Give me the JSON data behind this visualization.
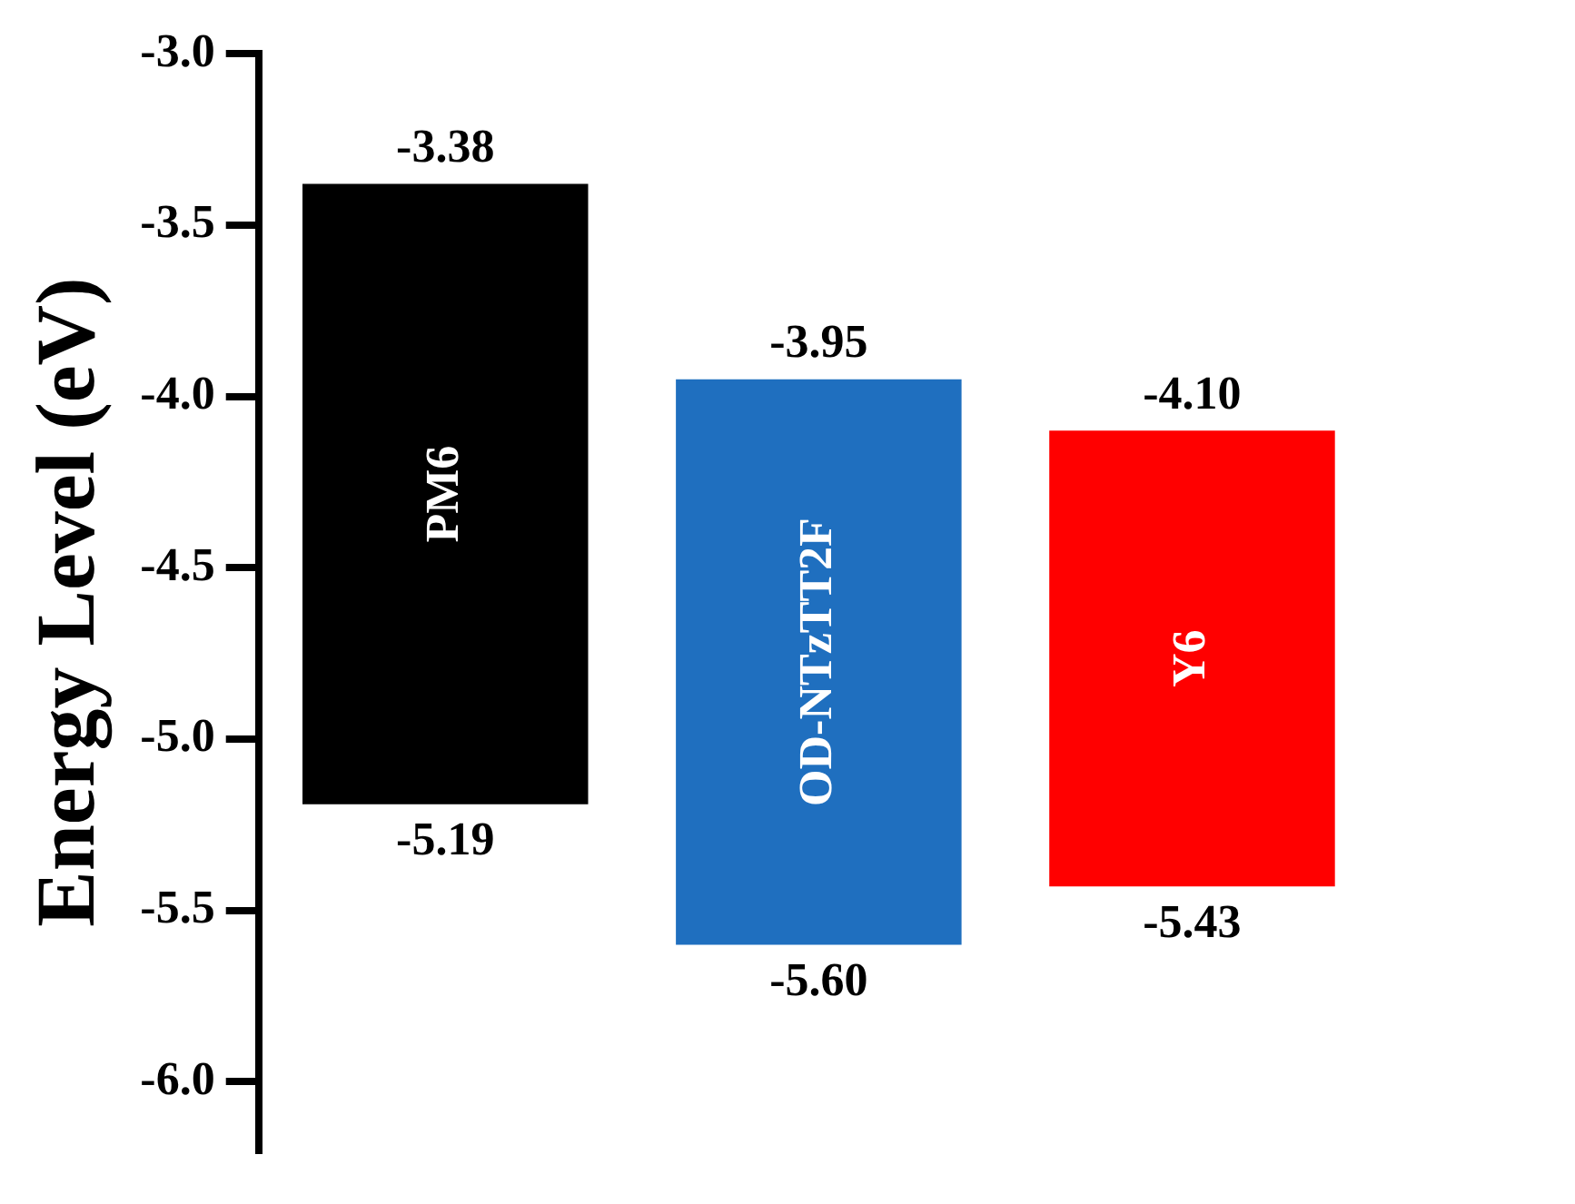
{
  "chart_data": {
    "type": "bar",
    "ylabel": "Energy Level (eV)",
    "categories": [
      "PM6",
      "OD-NTzTT2F",
      "Y6"
    ],
    "base": [
      -5.19,
      -5.6,
      -5.43
    ],
    "values": [
      1.81,
      1.65,
      1.33
    ],
    "colors": [
      "#000000",
      "#1f6fbf",
      "#ff0000"
    ],
    "ylim": [
      -6.2,
      -3.0
    ],
    "yticks": [
      {
        "value": -3.0,
        "label": "-3.0"
      },
      {
        "value": -3.5,
        "label": "-3.5"
      },
      {
        "value": -4.0,
        "label": "-4.0"
      },
      {
        "value": -4.5,
        "label": "-4.5"
      },
      {
        "value": -5.0,
        "label": "-5.0"
      },
      {
        "value": -5.5,
        "label": "-5.5"
      },
      {
        "value": -6.0,
        "label": "-6.0"
      }
    ],
    "annotations": [
      {
        "text": "-3.38",
        "x": "PM6",
        "y": -3.38
      },
      {
        "text": "-5.19",
        "x": "PM6",
        "y": -5.19
      },
      {
        "text": "-3.95",
        "x": "OD-NTzTT2F",
        "y": -3.95
      },
      {
        "text": "-5.60",
        "x": "OD-NTzTT2F",
        "y": -5.6
      },
      {
        "text": "-4.10",
        "x": "Y6",
        "y": -4.1
      },
      {
        "text": "-5.43",
        "x": "Y6",
        "y": -5.43
      }
    ],
    "grid": false,
    "legend": false
  }
}
